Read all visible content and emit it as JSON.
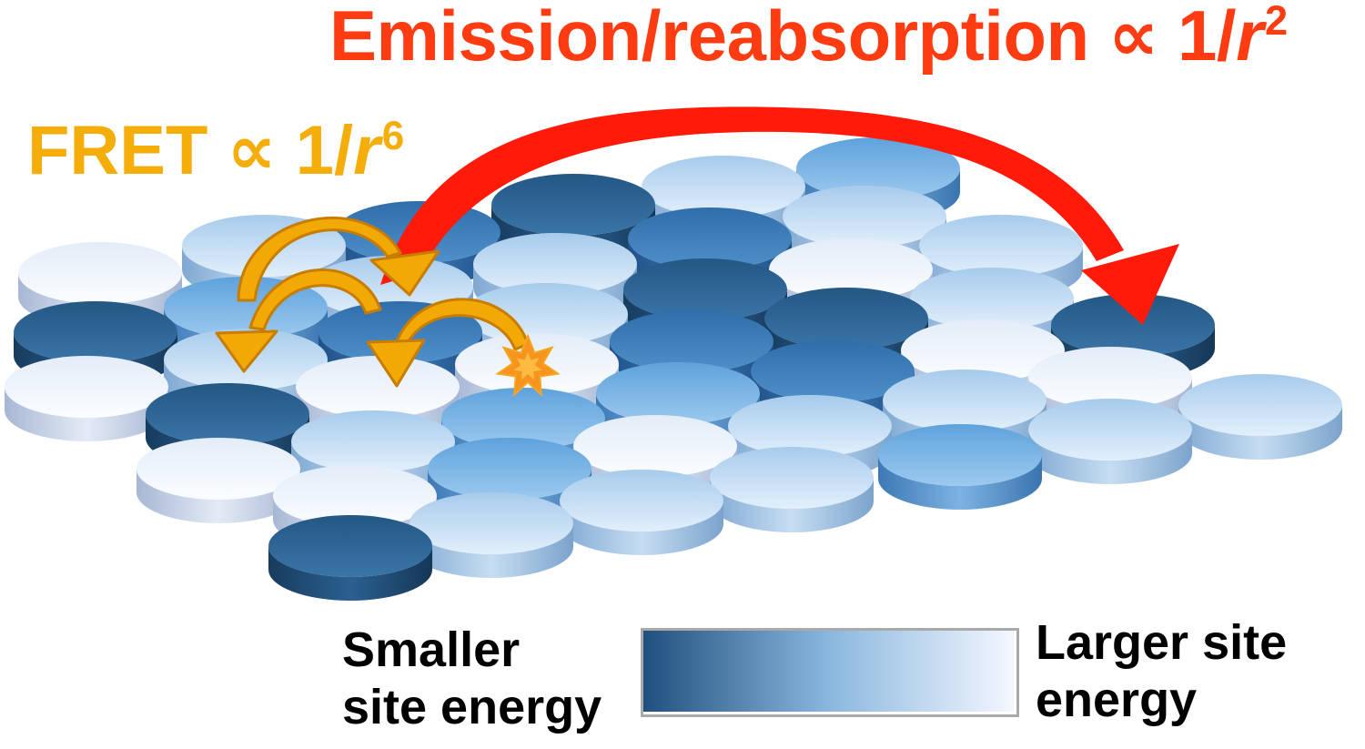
{
  "emission_label": {
    "prefix": "Emission/reabsorption ∝ 1/",
    "variable": "r",
    "exponent": "2"
  },
  "fret_label": {
    "prefix": "FRET ∝ 1/",
    "variable": "r",
    "exponent": "6"
  },
  "legend": {
    "low_label_line1": "Smaller",
    "low_label_line2": "site energy",
    "high_label_line1": "Larger site",
    "high_label_line2": "energy",
    "gradient_start_color": "#20507e",
    "gradient_end_color": "#f4f7ff"
  },
  "colors": {
    "emission": "#ff1a0a",
    "fret": "#f2a906",
    "excitation_star": "#f7941d"
  }
}
